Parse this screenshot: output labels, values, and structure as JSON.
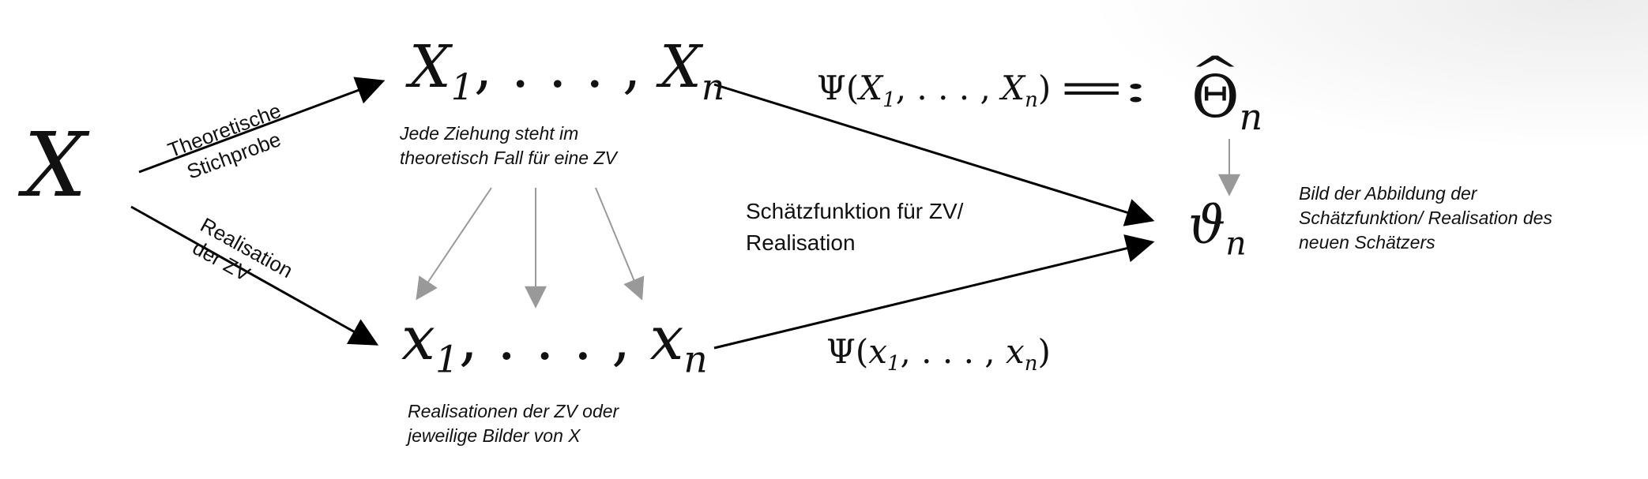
{
  "nodes": {
    "X": "X",
    "theoretical_sample": {
      "first": "X",
      "first_sub": "1",
      "sep": ", . . . , ",
      "last": "X",
      "last_sub": "n"
    },
    "realized_sample": {
      "first": "x",
      "first_sub": "1",
      "sep": ", . . . , ",
      "last": "x",
      "last_sub": "n"
    },
    "estimator": {
      "symbol": "Θ",
      "sub": "n"
    },
    "estimate": {
      "symbol": "ϑ",
      "sub": "n"
    }
  },
  "edges": {
    "theoretical_label": [
      "Theoretische",
      "Stichprobe"
    ],
    "realisation_label": [
      "Realisation",
      "der ZV"
    ],
    "psi_upper": {
      "psi": "Ψ",
      "open": "(",
      "first": "X",
      "first_sub": "1",
      "sep": ", . . . , ",
      "last": "X",
      "last_sub": "n",
      "close": ")",
      "define": "=:"
    },
    "psi_lower": {
      "psi": "Ψ",
      "open": "(",
      "first": "x",
      "first_sub": "1",
      "sep": ", . . . , ",
      "last": "x",
      "last_sub": "n",
      "close": ")"
    }
  },
  "annotations": {
    "draw_note": [
      "Jede Ziehung steht im",
      "theoretisch Fall für eine ZV"
    ],
    "realisation_note": [
      "Realisationen der ZV oder",
      "jeweilige Bilder von X"
    ],
    "estimator_function": [
      "Schätzfunktion für ZV/",
      "Realisation"
    ],
    "image_note": [
      "Bild der Abbildung der",
      "Schätzfunktion/ Realisation des",
      "neuen Schätzers"
    ]
  },
  "colors": {
    "main_arrow": "#000000",
    "grey_arrow": "#999999"
  }
}
